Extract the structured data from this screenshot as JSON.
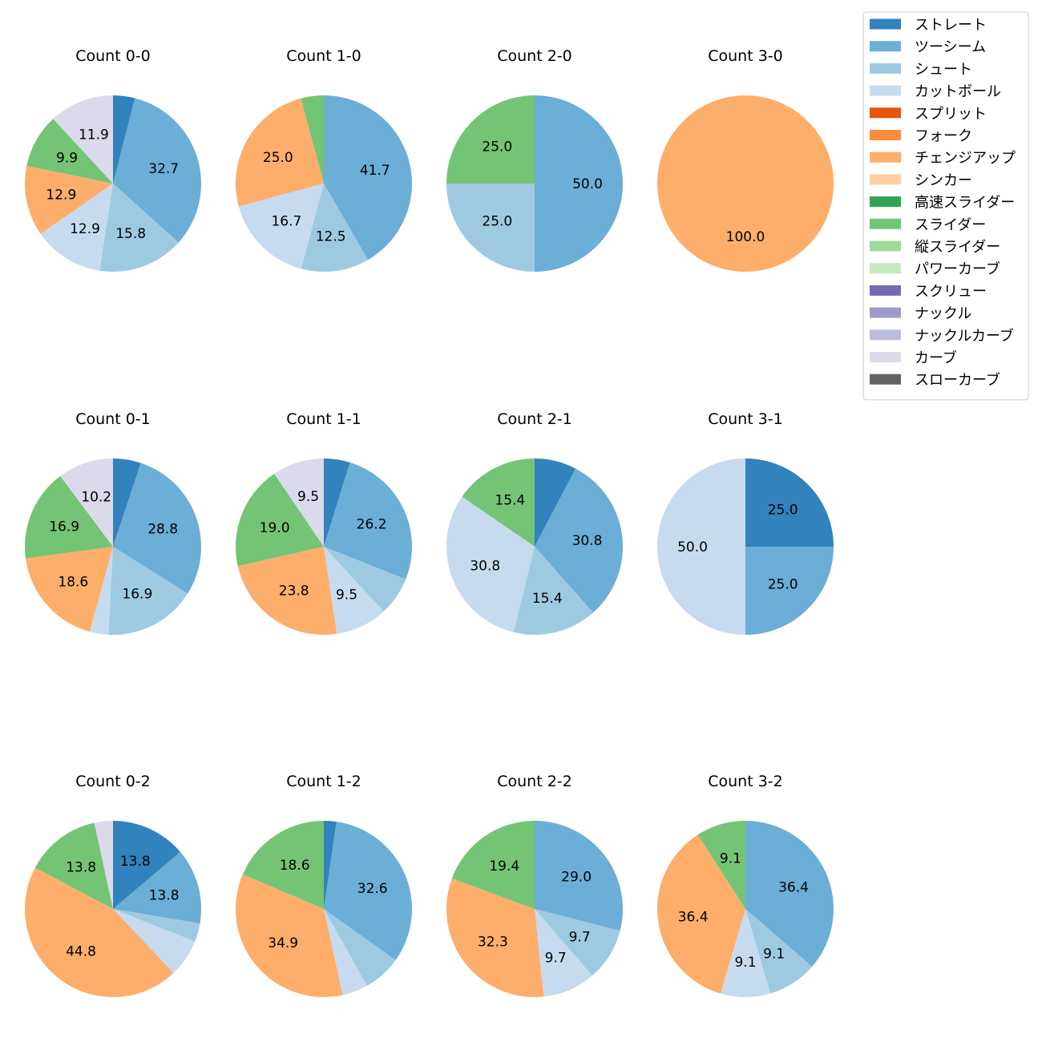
{
  "chart_data": {
    "type": "pie",
    "legend": {
      "placement": "top-right",
      "entries": [
        {
          "name": "ストレート",
          "color": "#3182bd"
        },
        {
          "name": "ツーシーム",
          "color": "#6baed6"
        },
        {
          "name": "シュート",
          "color": "#9ecae1"
        },
        {
          "name": "カットボール",
          "color": "#c6dbef"
        },
        {
          "name": "スプリット",
          "color": "#e6550d"
        },
        {
          "name": "フォーク",
          "color": "#fd8d3c"
        },
        {
          "name": "チェンジアップ",
          "color": "#fdae6b"
        },
        {
          "name": "シンカー",
          "color": "#fdd0a2"
        },
        {
          "name": "高速スライダー",
          "color": "#31a354"
        },
        {
          "name": "スライダー",
          "color": "#74c476"
        },
        {
          "name": "縦スライダー",
          "color": "#a1d99b"
        },
        {
          "name": "パワーカーブ",
          "color": "#c7e9c0"
        },
        {
          "name": "スクリュー",
          "color": "#756bb1"
        },
        {
          "name": "ナックル",
          "color": "#9e9ac8"
        },
        {
          "name": "ナックルカーブ",
          "color": "#bcbddc"
        },
        {
          "name": "カーブ",
          "color": "#dadaeb"
        },
        {
          "name": "スローカーブ",
          "color": "#636363"
        }
      ]
    },
    "pies": [
      {
        "title": "Count 0-0",
        "slices": [
          {
            "name": "ストレート",
            "value": 4.0
          },
          {
            "name": "ツーシーム",
            "value": 32.7,
            "label": "32.7"
          },
          {
            "name": "シュート",
            "value": 15.8,
            "label": "15.8"
          },
          {
            "name": "カットボール",
            "value": 12.9,
            "label": "12.9"
          },
          {
            "name": "チェンジアップ",
            "value": 12.9,
            "label": "12.9"
          },
          {
            "name": "スライダー",
            "value": 9.9,
            "label": "9.9"
          },
          {
            "name": "カーブ",
            "value": 11.9,
            "label": "11.9"
          }
        ]
      },
      {
        "title": "Count 1-0",
        "slices": [
          {
            "name": "ツーシーム",
            "value": 41.7,
            "label": "41.7"
          },
          {
            "name": "シュート",
            "value": 12.5,
            "label": "12.5"
          },
          {
            "name": "カットボール",
            "value": 16.7,
            "label": "16.7"
          },
          {
            "name": "チェンジアップ",
            "value": 25.0,
            "label": "25.0"
          },
          {
            "name": "スライダー",
            "value": 4.2
          }
        ]
      },
      {
        "title": "Count 2-0",
        "slices": [
          {
            "name": "ツーシーム",
            "value": 50.0,
            "label": "50.0"
          },
          {
            "name": "シュート",
            "value": 25.0,
            "label": "25.0"
          },
          {
            "name": "スライダー",
            "value": 25.0,
            "label": "25.0"
          }
        ]
      },
      {
        "title": "Count 3-0",
        "slices": [
          {
            "name": "チェンジアップ",
            "value": 100.0,
            "label": "100.0"
          }
        ]
      },
      {
        "title": "Count 0-1",
        "slices": [
          {
            "name": "ストレート",
            "value": 5.1
          },
          {
            "name": "ツーシーム",
            "value": 28.8,
            "label": "28.8"
          },
          {
            "name": "シュート",
            "value": 16.9,
            "label": "16.9"
          },
          {
            "name": "カットボール",
            "value": 3.4
          },
          {
            "name": "チェンジアップ",
            "value": 18.6,
            "label": "18.6"
          },
          {
            "name": "スライダー",
            "value": 16.9,
            "label": "16.9"
          },
          {
            "name": "カーブ",
            "value": 10.2,
            "label": "10.2"
          }
        ]
      },
      {
        "title": "Count 1-1",
        "slices": [
          {
            "name": "ストレート",
            "value": 4.8
          },
          {
            "name": "ツーシーム",
            "value": 26.2,
            "label": "26.2"
          },
          {
            "name": "シュート",
            "value": 7.1
          },
          {
            "name": "カットボール",
            "value": 9.5,
            "label": "9.5"
          },
          {
            "name": "チェンジアップ",
            "value": 23.8,
            "label": "23.8"
          },
          {
            "name": "スライダー",
            "value": 19.0,
            "label": "19.0"
          },
          {
            "name": "カーブ",
            "value": 9.5,
            "label": "9.5"
          }
        ]
      },
      {
        "title": "Count 2-1",
        "slices": [
          {
            "name": "ストレート",
            "value": 7.7
          },
          {
            "name": "ツーシーム",
            "value": 30.8,
            "label": "30.8"
          },
          {
            "name": "シュート",
            "value": 15.4,
            "label": "15.4"
          },
          {
            "name": "カットボール",
            "value": 30.8,
            "label": "30.8"
          },
          {
            "name": "スライダー",
            "value": 15.4,
            "label": "15.4"
          }
        ]
      },
      {
        "title": "Count 3-1",
        "slices": [
          {
            "name": "ストレート",
            "value": 25.0,
            "label": "25.0"
          },
          {
            "name": "ツーシーム",
            "value": 25.0,
            "label": "25.0"
          },
          {
            "name": "カットボール",
            "value": 50.0,
            "label": "50.0"
          }
        ]
      },
      {
        "title": "Count 0-2",
        "slices": [
          {
            "name": "ストレート",
            "value": 13.8,
            "label": "13.8"
          },
          {
            "name": "ツーシーム",
            "value": 13.8,
            "label": "13.8"
          },
          {
            "name": "シュート",
            "value": 3.4
          },
          {
            "name": "カットボール",
            "value": 6.9
          },
          {
            "name": "チェンジアップ",
            "value": 44.8,
            "label": "44.8"
          },
          {
            "name": "スライダー",
            "value": 13.8,
            "label": "13.8"
          },
          {
            "name": "カーブ",
            "value": 3.4
          }
        ]
      },
      {
        "title": "Count 1-2",
        "slices": [
          {
            "name": "ストレート",
            "value": 2.3
          },
          {
            "name": "ツーシーム",
            "value": 32.6,
            "label": "32.6"
          },
          {
            "name": "シュート",
            "value": 7.0
          },
          {
            "name": "カットボール",
            "value": 4.7
          },
          {
            "name": "チェンジアップ",
            "value": 34.9,
            "label": "34.9"
          },
          {
            "name": "スライダー",
            "value": 18.6,
            "label": "18.6"
          }
        ]
      },
      {
        "title": "Count 2-2",
        "slices": [
          {
            "name": "ツーシーム",
            "value": 29.0,
            "label": "29.0"
          },
          {
            "name": "シュート",
            "value": 9.7,
            "label": "9.7"
          },
          {
            "name": "カットボール",
            "value": 9.7,
            "label": "9.7"
          },
          {
            "name": "チェンジアップ",
            "value": 32.3,
            "label": "32.3"
          },
          {
            "name": "スライダー",
            "value": 19.4,
            "label": "19.4"
          }
        ]
      },
      {
        "title": "Count 3-2",
        "slices": [
          {
            "name": "ツーシーム",
            "value": 36.4,
            "label": "36.4"
          },
          {
            "name": "シュート",
            "value": 9.1,
            "label": "9.1"
          },
          {
            "name": "カットボール",
            "value": 9.1,
            "label": "9.1"
          },
          {
            "name": "チェンジアップ",
            "value": 36.4,
            "label": "36.4"
          },
          {
            "name": "スライダー",
            "value": 9.1,
            "label": "9.1"
          }
        ]
      }
    ]
  }
}
